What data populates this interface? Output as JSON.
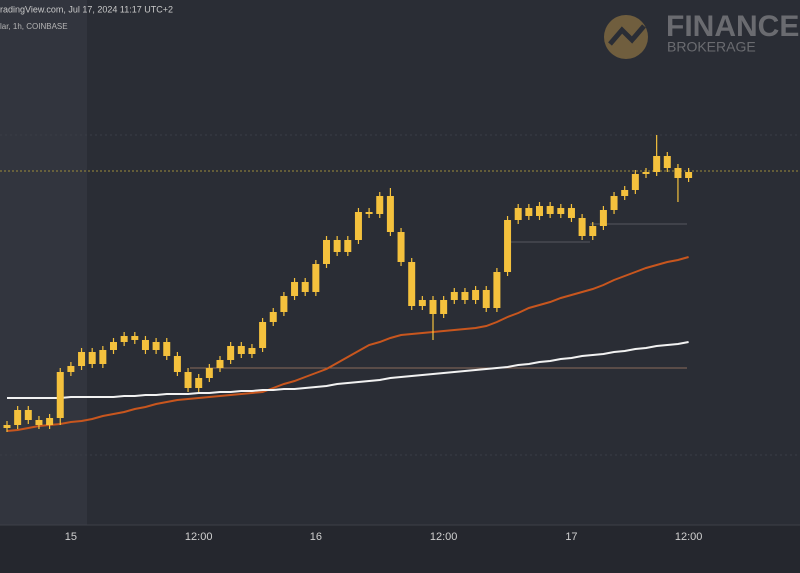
{
  "header": {
    "source": "radingView.com, Jul 17, 2024 11:17 UTC+2",
    "symbol": "lar, 1h, COINBASE"
  },
  "logo": {
    "name": "FINANCE",
    "sub": "BROKERAGE"
  },
  "chart_data": {
    "type": "candlestick",
    "color": "#f4c13d",
    "ylim": [
      0,
      525
    ],
    "categories": [
      null,
      null,
      null,
      null,
      null,
      null,
      "15",
      null,
      null,
      null,
      null,
      null,
      null,
      null,
      null,
      null,
      null,
      null,
      "12:00",
      null,
      null,
      null,
      null,
      null,
      null,
      null,
      null,
      null,
      null,
      "16",
      null,
      null,
      null,
      null,
      null,
      null,
      null,
      null,
      null,
      null,
      null,
      "12:00",
      null,
      null,
      null,
      null,
      null,
      null,
      null,
      null,
      null,
      null,
      null,
      "17",
      null,
      null,
      null,
      null,
      null,
      null,
      null,
      null,
      null,
      null,
      "12:00"
    ],
    "open": [
      97,
      100,
      115,
      105,
      100,
      107,
      153,
      159,
      173,
      161,
      175,
      183,
      189,
      185,
      175,
      183,
      169,
      153,
      137,
      147,
      157,
      165,
      179,
      171,
      177,
      203,
      213,
      229,
      243,
      233,
      261,
      285,
      273,
      285,
      313,
      311,
      329,
      293,
      263,
      219,
      225,
      211,
      225,
      233,
      225,
      235,
      217,
      253,
      305,
      317,
      309,
      319,
      311,
      317,
      307,
      289,
      299,
      315,
      329,
      335,
      351,
      353,
      369,
      357,
      347
    ],
    "high": [
      104,
      119,
      119,
      109,
      111,
      157,
      163,
      177,
      177,
      179,
      187,
      193,
      193,
      189,
      187,
      187,
      173,
      157,
      151,
      161,
      169,
      183,
      183,
      181,
      207,
      217,
      233,
      247,
      247,
      265,
      289,
      289,
      289,
      317,
      317,
      333,
      337,
      297,
      267,
      229,
      229,
      229,
      237,
      237,
      239,
      239,
      257,
      309,
      321,
      321,
      323,
      323,
      321,
      321,
      311,
      303,
      319,
      333,
      339,
      355,
      357,
      390,
      373,
      361,
      357
    ],
    "low": [
      93,
      96,
      101,
      96,
      96,
      100,
      149,
      155,
      157,
      157,
      171,
      179,
      181,
      171,
      171,
      165,
      149,
      133,
      133,
      143,
      153,
      161,
      167,
      167,
      173,
      199,
      209,
      225,
      229,
      229,
      257,
      269,
      269,
      281,
      307,
      307,
      289,
      259,
      215,
      215,
      185,
      207,
      221,
      221,
      221,
      213,
      213,
      249,
      301,
      305,
      305,
      307,
      307,
      303,
      285,
      285,
      295,
      311,
      325,
      331,
      347,
      349,
      353,
      323,
      343
    ],
    "close": [
      100,
      115,
      105,
      100,
      107,
      153,
      159,
      173,
      161,
      175,
      183,
      189,
      185,
      175,
      183,
      169,
      153,
      137,
      147,
      157,
      165,
      179,
      171,
      177,
      203,
      213,
      229,
      243,
      233,
      261,
      285,
      273,
      285,
      313,
      311,
      329,
      293,
      263,
      219,
      225,
      211,
      225,
      233,
      225,
      235,
      217,
      253,
      305,
      317,
      309,
      319,
      311,
      317,
      307,
      289,
      299,
      315,
      329,
      335,
      351,
      353,
      369,
      357,
      347,
      353
    ],
    "lines": [
      {
        "color": "#c8561e",
        "values": [
          94,
          95,
          97,
          99,
          100,
          101,
          103,
          104,
          106,
          109,
          111,
          113,
          116,
          118,
          121,
          123,
          125,
          126,
          127,
          128,
          129,
          130,
          131,
          132,
          133,
          137,
          141,
          144,
          148,
          152,
          156,
          162,
          168,
          174,
          180,
          183,
          187,
          190,
          191,
          192,
          193,
          194,
          195,
          196,
          197,
          199,
          203,
          208,
          212,
          217,
          220,
          223,
          227,
          230,
          233,
          236,
          240,
          245,
          249,
          253,
          257,
          260,
          263,
          265,
          268
        ]
      },
      {
        "color": "#f2f2f2",
        "values": [
          127,
          127,
          127,
          127,
          127,
          127,
          128,
          128,
          128,
          128,
          128,
          129,
          129,
          130,
          130,
          131,
          131,
          131,
          132,
          132,
          133,
          133,
          134,
          134,
          135,
          135,
          136,
          136,
          137,
          138,
          139,
          141,
          142,
          143,
          144,
          145,
          147,
          148,
          149,
          150,
          151,
          152,
          153,
          154,
          155,
          156,
          157,
          158,
          160,
          161,
          163,
          164,
          166,
          167,
          169,
          170,
          171,
          173,
          174,
          176,
          177,
          179,
          180,
          181,
          183
        ]
      }
    ]
  }
}
